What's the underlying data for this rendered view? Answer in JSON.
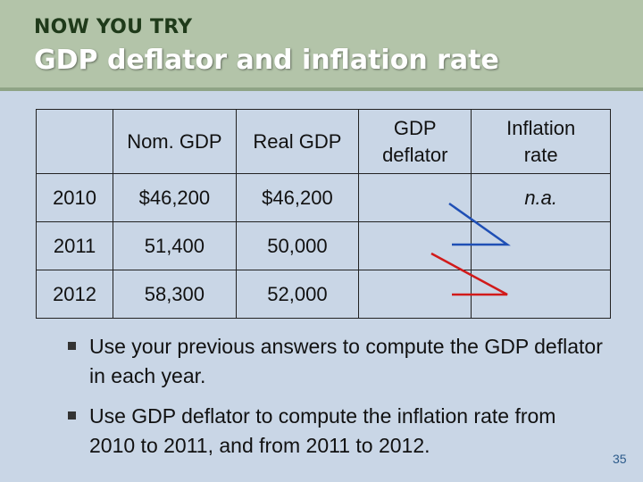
{
  "header": {
    "kicker": "NOW YOU TRY",
    "title": "GDP deflator and inflation rate"
  },
  "table": {
    "columns": [
      "",
      "Nom. GDP",
      "Real GDP",
      "GDP deflator",
      "Inflation rate"
    ],
    "rows": [
      {
        "year": "2010",
        "nominal_gdp": "$46,200",
        "real_gdp": "$46,200",
        "gdp_deflator": "",
        "inflation_rate": "n.a."
      },
      {
        "year": "2011",
        "nominal_gdp": "51,400",
        "real_gdp": "50,000",
        "gdp_deflator": "",
        "inflation_rate": ""
      },
      {
        "year": "2012",
        "nominal_gdp": "58,300",
        "real_gdp": "52,000",
        "gdp_deflator": "",
        "inflation_rate": ""
      }
    ]
  },
  "annotation_colors": {
    "blue_zigzag": "#1f4fb5",
    "red_zigzag": "#d11a1a"
  },
  "bullets": [
    "Use your previous answers to compute the GDP deflator in each year.",
    "Use GDP deflator to compute the inflation rate from 2010 to 2011, and from 2011 to 2012."
  ],
  "slide_number": "35",
  "colors": {
    "background": "#c9d6e6",
    "header_band": "#b3c4a9",
    "kicker_text": "#1f3a1a",
    "title_text": "#ffffff",
    "page_number": "#2b5a8a"
  }
}
